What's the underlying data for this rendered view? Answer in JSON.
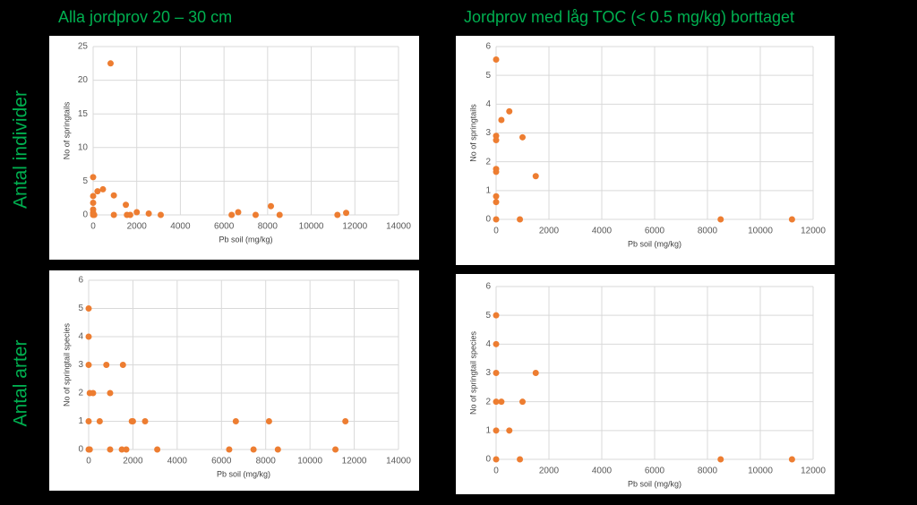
{
  "column_titles": [
    "Alla jordprov 20 – 30 cm",
    "Jordprov med låg TOC (< 0.5 mg/kg) borttaget"
  ],
  "row_labels": [
    "Antal individer",
    "Antal arter"
  ],
  "chart_data": [
    {
      "type": "scatter",
      "x_label": "Pb soil (mg/kg)",
      "y_label": "No of springtails",
      "color": "#ed7d31",
      "grid": true,
      "xlim": [
        0,
        14000
      ],
      "xticks": [
        0,
        2000,
        4000,
        6000,
        8000,
        10000,
        12000,
        14000
      ],
      "ylim": [
        0,
        25
      ],
      "yticks": [
        0,
        5,
        10,
        15,
        20,
        25
      ],
      "x": [
        800,
        0,
        200,
        450,
        950,
        0,
        0,
        0,
        0,
        0,
        50,
        950,
        1500,
        1550,
        1700,
        2000,
        2550,
        3100,
        6350,
        6650,
        7450,
        8150,
        8550,
        11200,
        11600
      ],
      "y": [
        22.5,
        5.6,
        3.5,
        3.8,
        2.9,
        2.8,
        1.8,
        0.8,
        0.3,
        0,
        0,
        0,
        1.5,
        0,
        0,
        0.4,
        0.2,
        0,
        0,
        0.4,
        0,
        1.3,
        0,
        0,
        0.3
      ]
    },
    {
      "type": "scatter",
      "x_label": "Pb soil (mg/kg)",
      "y_label": "No of springtails",
      "color": "#ed7d31",
      "grid": true,
      "xlim": [
        0,
        12000
      ],
      "xticks": [
        0,
        2000,
        4000,
        6000,
        8000,
        10000,
        12000
      ],
      "ylim": [
        0,
        6
      ],
      "yticks": [
        0,
        1,
        2,
        3,
        4,
        5,
        6
      ],
      "x": [
        0,
        200,
        500,
        1000,
        1500,
        0,
        0,
        0,
        0,
        0,
        0,
        0,
        900,
        8500,
        11200
      ],
      "y": [
        5.55,
        3.45,
        3.75,
        2.85,
        1.5,
        2.9,
        2.75,
        1.75,
        1.65,
        0.8,
        0.6,
        0,
        0,
        0,
        0
      ]
    },
    {
      "type": "scatter",
      "x_label": "Pb soil (mg/kg)",
      "y_label": "No of springtail species",
      "color": "#ed7d31",
      "grid": true,
      "xlim": [
        0,
        14000
      ],
      "xticks": [
        0,
        2000,
        4000,
        6000,
        8000,
        10000,
        12000,
        14000
      ],
      "ylim": [
        0,
        6
      ],
      "yticks": [
        0,
        1,
        2,
        3,
        4,
        5,
        6
      ],
      "x": [
        0,
        0,
        0,
        800,
        1550,
        50,
        200,
        970,
        0,
        500,
        1950,
        2000,
        2550,
        6650,
        8150,
        11600,
        0,
        50,
        970,
        1500,
        1700,
        3100,
        6350,
        7450,
        8550,
        11150
      ],
      "y": [
        5,
        4,
        3,
        3,
        3,
        2,
        2,
        2,
        1,
        1,
        1,
        1,
        1,
        1,
        1,
        1,
        0,
        0,
        0,
        0,
        0,
        0,
        0,
        0,
        0,
        0
      ]
    },
    {
      "type": "scatter",
      "x_label": "Pb soil (mg/kg)",
      "y_label": "No of springtail species",
      "color": "#ed7d31",
      "grid": true,
      "xlim": [
        0,
        12000
      ],
      "xticks": [
        0,
        2000,
        4000,
        6000,
        8000,
        10000,
        12000
      ],
      "ylim": [
        0,
        6
      ],
      "yticks": [
        0,
        1,
        2,
        3,
        4,
        5,
        6
      ],
      "x": [
        0,
        0,
        0,
        0,
        200,
        1000,
        500,
        1500,
        0,
        0,
        900,
        8500,
        11200
      ],
      "y": [
        5,
        4,
        3,
        2,
        2,
        2,
        1,
        3,
        1,
        0,
        0,
        0,
        0
      ]
    }
  ]
}
